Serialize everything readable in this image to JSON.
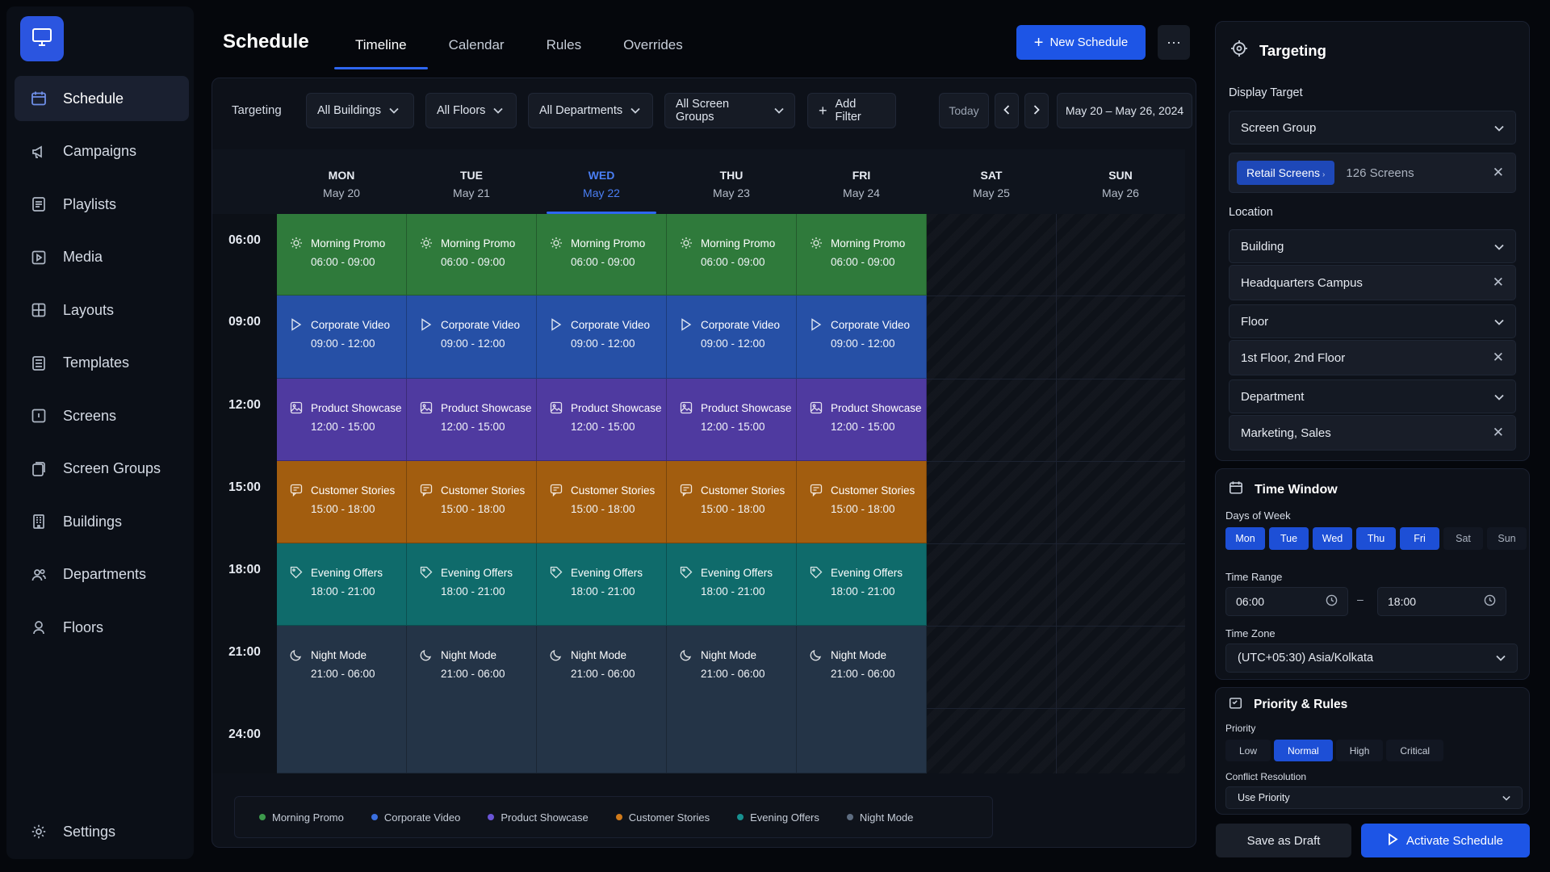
{
  "app": {
    "logo_icon": "monitor-icon",
    "accent_color": "#1d55e6"
  },
  "sidebar": {
    "items": [
      {
        "label": "Schedule",
        "icon": "calendar-icon",
        "active": true
      },
      {
        "label": "Campaigns",
        "icon": "megaphone-icon"
      },
      {
        "label": "Playlists",
        "icon": "playlist-icon"
      },
      {
        "label": "Media",
        "icon": "play-square-icon"
      },
      {
        "label": "Layouts",
        "icon": "layout-icon"
      },
      {
        "label": "Templates",
        "icon": "template-icon"
      },
      {
        "label": "Screens",
        "icon": "screen-icon"
      },
      {
        "label": "Screen Groups",
        "icon": "screen-group-icon"
      },
      {
        "label": "Buildings",
        "icon": "building-icon"
      },
      {
        "label": "Departments",
        "icon": "users-icon"
      },
      {
        "label": "Floors",
        "icon": "map-pin-icon"
      }
    ],
    "settings_label": "Settings"
  },
  "header": {
    "title": "Schedule",
    "tabs": [
      "Timeline",
      "Calendar",
      "Rules",
      "Overrides"
    ],
    "active_tab": "Timeline",
    "new_button": "New Schedule",
    "more_button": "···"
  },
  "filters": {
    "label": "Targeting",
    "buildings": "All Buildings",
    "floors": "All Floors",
    "departments": "All Departments",
    "screen_groups": "All Screen Groups",
    "add_filter": "Add Filter",
    "today": "Today",
    "date_range": "May 20 – May 26, 2024"
  },
  "calendar": {
    "days": [
      {
        "name": "MON",
        "date": "May 20"
      },
      {
        "name": "TUE",
        "date": "May 21"
      },
      {
        "name": "WED",
        "date": "May 22",
        "today": true
      },
      {
        "name": "THU",
        "date": "May 23"
      },
      {
        "name": "FRI",
        "date": "May 24"
      },
      {
        "name": "SAT",
        "date": "May 25"
      },
      {
        "name": "SUN",
        "date": "May 26"
      }
    ],
    "times": [
      "06:00",
      "09:00",
      "12:00",
      "15:00",
      "18:00",
      "21:00",
      "24:00"
    ],
    "events": [
      {
        "name": "Morning Promo",
        "time": "06:00 - 09:00",
        "icon": "sun-icon",
        "class": "ev-morning"
      },
      {
        "name": "Corporate Video",
        "time": "09:00 - 12:00",
        "icon": "play-icon",
        "class": "ev-corporate"
      },
      {
        "name": "Product Showcase",
        "time": "12:00 - 15:00",
        "icon": "image-icon",
        "class": "ev-product"
      },
      {
        "name": "Customer Stories",
        "time": "15:00 - 18:00",
        "icon": "chat-icon",
        "class": "ev-customer"
      },
      {
        "name": "Evening Offers",
        "time": "18:00 - 21:00",
        "icon": "tag-icon",
        "class": "ev-evening"
      },
      {
        "name": "Night Mode",
        "time": "21:00 - 06:00",
        "icon": "moon-icon",
        "class": "ev-night"
      }
    ]
  },
  "legend": [
    {
      "label": "Morning Promo",
      "color": "#3d9a4c"
    },
    {
      "label": "Corporate Video",
      "color": "#3a6fe0"
    },
    {
      "label": "Product Showcase",
      "color": "#6a55d6"
    },
    {
      "label": "Customer Stories",
      "color": "#d07a1a"
    },
    {
      "label": "Evening Offers",
      "color": "#179090"
    },
    {
      "label": "Night Mode",
      "color": "#5d6c80"
    }
  ],
  "targeting": {
    "title": "Targeting",
    "display_target_label": "Display Target",
    "display_target_value": "Screen Group",
    "group_tag": "Retail Screens",
    "group_count": "126 Screens",
    "location_label": "Location",
    "building_label": "Building",
    "building_value": "Headquarters Campus",
    "floor_label": "Floor",
    "floor_value": "1st Floor, 2nd Floor",
    "department_label": "Department",
    "department_value": "Marketing, Sales"
  },
  "time_window": {
    "title": "Time Window",
    "days_label": "Days of Week",
    "days": [
      {
        "label": "Mon",
        "on": true
      },
      {
        "label": "Tue",
        "on": true
      },
      {
        "label": "Wed",
        "on": true
      },
      {
        "label": "Thu",
        "on": true
      },
      {
        "label": "Fri",
        "on": true
      },
      {
        "label": "Sat",
        "on": false
      },
      {
        "label": "Sun",
        "on": false
      }
    ],
    "range_label": "Time Range",
    "start": "06:00",
    "separator": "–",
    "end": "18:00",
    "tz_label": "Time Zone",
    "tz_value": "(UTC+05:30) Asia/Kolkata"
  },
  "priority": {
    "title": "Priority & Rules",
    "label": "Priority",
    "options": [
      "Low",
      "Normal",
      "High",
      "Critical"
    ],
    "selected": "Normal",
    "conflict_label": "Conflict Resolution",
    "conflict_value": "Use Priority"
  },
  "actions": {
    "draft": "Save as Draft",
    "activate": "Activate Schedule"
  }
}
